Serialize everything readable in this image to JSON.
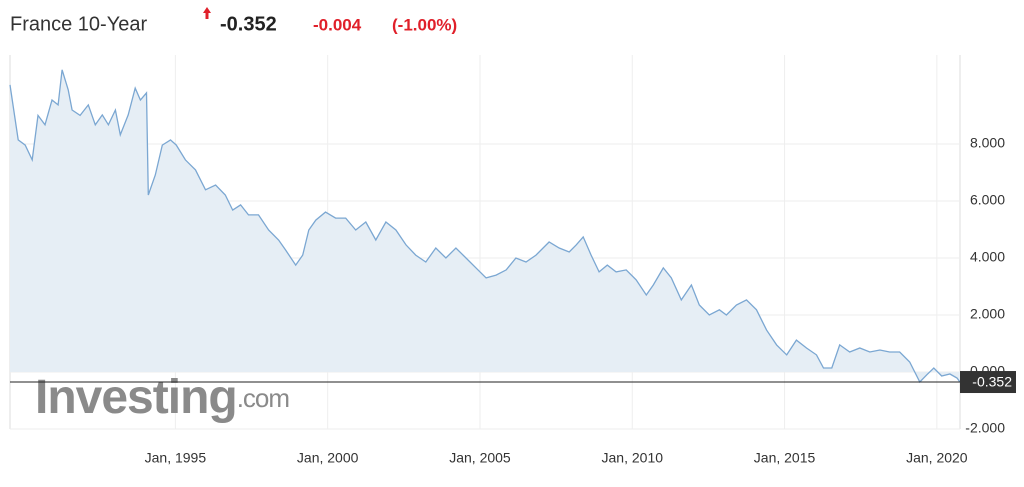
{
  "chart_data": {
    "type": "area",
    "title": "France 10-Year",
    "last_value": -0.352,
    "change": -0.004,
    "change_percent": {
      "value": -1.0,
      "label": "(-1.00%)"
    },
    "watermark": [
      "Investing",
      ".com"
    ],
    "color": "#7ba7d2",
    "fill_color": "#e6eef5",
    "last_value_color": "#333333",
    "up_color": "#e0202a",
    "change_color": "#e0202a",
    "grid": true,
    "x": [
      1989.57,
      1989.84,
      1990.07,
      1990.3,
      1990.49,
      1990.72,
      1990.95,
      1991.15,
      1991.28,
      1991.48,
      1991.61,
      1991.87,
      1992.14,
      1992.37,
      1992.6,
      1992.8,
      1993.03,
      1993.19,
      1993.45,
      1993.68,
      1993.85,
      1994.05,
      1994.11,
      1994.34,
      1994.57,
      1994.84,
      1995.03,
      1995.33,
      1995.66,
      1995.99,
      1996.32,
      1996.64,
      1996.88,
      1997.14,
      1997.4,
      1997.73,
      1998.06,
      1998.39,
      1998.62,
      1998.95,
      1999.18,
      1999.38,
      1999.61,
      1999.93,
      2000.26,
      2000.59,
      2000.92,
      2001.25,
      2001.58,
      2001.91,
      2002.24,
      2002.57,
      2002.89,
      2003.22,
      2003.55,
      2003.88,
      2004.21,
      2004.54,
      2004.87,
      2005.2,
      2005.53,
      2005.86,
      2006.18,
      2006.51,
      2006.84,
      2007.27,
      2007.6,
      2007.93,
      2008.16,
      2008.39,
      2008.65,
      2008.91,
      2009.18,
      2009.47,
      2009.8,
      2010.13,
      2010.46,
      2010.69,
      2011.02,
      2011.28,
      2011.61,
      2011.94,
      2012.2,
      2012.53,
      2012.86,
      2013.09,
      2013.42,
      2013.75,
      2014.08,
      2014.41,
      2014.74,
      2015.07,
      2015.39,
      2015.72,
      2016.05,
      2016.28,
      2016.55,
      2016.81,
      2017.14,
      2017.47,
      2017.8,
      2018.13,
      2018.45,
      2018.78,
      2019.11,
      2019.44,
      2019.67,
      2019.9,
      2020.16,
      2020.43,
      2020.66,
      2020.76
    ],
    "values": [
      10.07,
      8.14,
      7.96,
      7.44,
      9.0,
      8.67,
      9.54,
      9.37,
      10.6,
      9.9,
      9.19,
      9.0,
      9.37,
      8.67,
      9.02,
      8.67,
      9.19,
      8.32,
      9.02,
      9.96,
      9.54,
      9.79,
      6.21,
      6.91,
      7.96,
      8.14,
      7.96,
      7.44,
      7.09,
      6.39,
      6.56,
      6.21,
      5.68,
      5.86,
      5.51,
      5.51,
      4.98,
      4.63,
      4.28,
      3.75,
      4.1,
      4.98,
      5.33,
      5.61,
      5.4,
      5.4,
      4.98,
      5.26,
      4.63,
      5.26,
      4.98,
      4.46,
      4.1,
      3.86,
      4.35,
      4.0,
      4.35,
      4.0,
      3.65,
      3.3,
      3.4,
      3.58,
      4.0,
      3.86,
      4.1,
      4.56,
      4.35,
      4.21,
      4.46,
      4.74,
      4.1,
      3.51,
      3.75,
      3.51,
      3.58,
      3.23,
      2.7,
      3.05,
      3.65,
      3.3,
      2.53,
      3.05,
      2.35,
      2.0,
      2.18,
      2.0,
      2.35,
      2.53,
      2.18,
      1.47,
      0.95,
      0.6,
      1.12,
      0.84,
      0.6,
      0.14,
      0.14,
      0.95,
      0.7,
      0.84,
      0.7,
      0.77,
      0.7,
      0.7,
      0.35,
      -0.35,
      -0.1,
      0.14,
      -0.14,
      -0.07,
      -0.21,
      -0.35
    ],
    "xlim": [
      1989.57,
      2020.76
    ],
    "ylim": [
      -2,
      11.12
    ],
    "xticks": [
      {
        "value": 1995,
        "label": "Jan, 1995"
      },
      {
        "value": 2000,
        "label": "Jan, 2000"
      },
      {
        "value": 2005,
        "label": "Jan, 2005"
      },
      {
        "value": 2010,
        "label": "Jan, 2010"
      },
      {
        "value": 2015,
        "label": "Jan, 2015"
      },
      {
        "value": 2020,
        "label": "Jan, 2020"
      }
    ],
    "yticks": [
      {
        "value": -2,
        "label": "-2.000"
      },
      {
        "value": 0,
        "label": "0.000"
      },
      {
        "value": 2,
        "label": "2.000"
      },
      {
        "value": 4,
        "label": "4.000"
      },
      {
        "value": 6,
        "label": "6.000"
      },
      {
        "value": 8,
        "label": "8.000"
      }
    ]
  }
}
